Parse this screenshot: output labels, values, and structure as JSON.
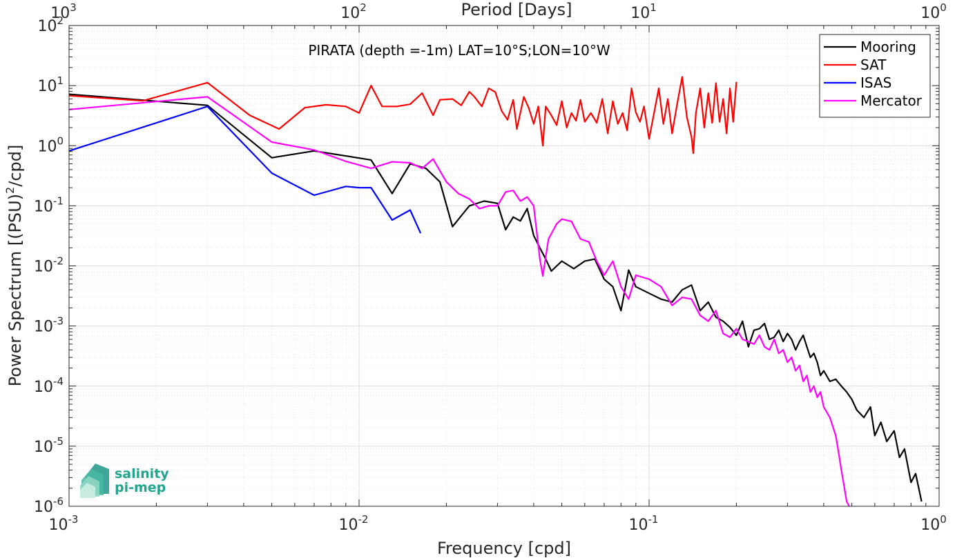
{
  "chart_data": {
    "type": "line",
    "title": "PIRATA (depth =-1m) LAT=10°S;LON=10°W",
    "xlabel": "Frequency [cpd]",
    "ylabel": "Power Spectrum [(PSU)²/cpd]",
    "top_xlabel": "Period [Days]",
    "x_scale": "log",
    "y_scale": "log",
    "xlim": [
      0.001,
      1
    ],
    "ylim": [
      1e-06,
      100
    ],
    "grid": true,
    "legend_position": "top-right",
    "x_ticks": [
      {
        "base": "10",
        "exp": "-3"
      },
      {
        "base": "10",
        "exp": "-2"
      },
      {
        "base": "10",
        "exp": "-1"
      },
      {
        "base": "10",
        "exp": "0"
      }
    ],
    "top_ticks": [
      {
        "base": "10",
        "exp": "3"
      },
      {
        "base": "10",
        "exp": "2"
      },
      {
        "base": "10",
        "exp": "1"
      },
      {
        "base": "10",
        "exp": "0"
      }
    ],
    "y_ticks": [
      {
        "base": "10",
        "exp": "-6"
      },
      {
        "base": "10",
        "exp": "-5"
      },
      {
        "base": "10",
        "exp": "-4"
      },
      {
        "base": "10",
        "exp": "-3"
      },
      {
        "base": "10",
        "exp": "-2"
      },
      {
        "base": "10",
        "exp": "-1"
      },
      {
        "base": "10",
        "exp": "0"
      },
      {
        "base": "10",
        "exp": "1"
      },
      {
        "base": "10",
        "exp": "2"
      }
    ],
    "series": [
      {
        "name": "Mooring",
        "color": "#000000",
        "points": [
          [
            0.001,
            7.2
          ],
          [
            0.003,
            4.7
          ],
          [
            0.005,
            0.63
          ],
          [
            0.007,
            0.82
          ],
          [
            0.011,
            0.58
          ],
          [
            0.013,
            0.16
          ],
          [
            0.015,
            0.5
          ],
          [
            0.017,
            0.42
          ],
          [
            0.019,
            0.25
          ],
          [
            0.021,
            0.045
          ],
          [
            0.024,
            0.1
          ],
          [
            0.027,
            0.12
          ],
          [
            0.03,
            0.11
          ],
          [
            0.032,
            0.04
          ],
          [
            0.034,
            0.065
          ],
          [
            0.036,
            0.056
          ],
          [
            0.038,
            0.09
          ],
          [
            0.04,
            0.032
          ],
          [
            0.042,
            0.02
          ],
          [
            0.044,
            0.013
          ],
          [
            0.046,
            0.0082
          ],
          [
            0.05,
            0.012
          ],
          [
            0.055,
            0.009
          ],
          [
            0.06,
            0.012
          ],
          [
            0.065,
            0.013
          ],
          [
            0.07,
            0.006
          ],
          [
            0.075,
            0.0045
          ],
          [
            0.08,
            0.0018
          ],
          [
            0.085,
            0.0085
          ],
          [
            0.09,
            0.0045
          ],
          [
            0.1,
            0.0035
          ],
          [
            0.11,
            0.0028
          ],
          [
            0.12,
            0.0025
          ],
          [
            0.13,
            0.004
          ],
          [
            0.14,
            0.0048
          ],
          [
            0.15,
            0.0018
          ],
          [
            0.16,
            0.0025
          ],
          [
            0.17,
            0.0014
          ],
          [
            0.18,
            0.0012
          ],
          [
            0.19,
            0.00095
          ],
          [
            0.2,
            0.0007
          ],
          [
            0.21,
            0.0012
          ],
          [
            0.22,
            0.00045
          ],
          [
            0.23,
            0.00085
          ],
          [
            0.24,
            0.0009
          ],
          [
            0.25,
            0.0011
          ],
          [
            0.26,
            0.0006
          ],
          [
            0.27,
            0.00065
          ],
          [
            0.28,
            0.00085
          ],
          [
            0.29,
            0.00055
          ],
          [
            0.3,
            0.00075
          ],
          [
            0.31,
            0.0006
          ],
          [
            0.32,
            0.0004
          ],
          [
            0.33,
            0.00055
          ],
          [
            0.34,
            0.0007
          ],
          [
            0.35,
            0.00045
          ],
          [
            0.36,
            0.0003
          ],
          [
            0.37,
            0.00035
          ],
          [
            0.38,
            0.00025
          ],
          [
            0.39,
            0.00015
          ],
          [
            0.4,
            0.00018
          ],
          [
            0.42,
            0.00012
          ],
          [
            0.44,
            0.00013
          ],
          [
            0.46,
            0.0001
          ],
          [
            0.48,
            8e-05
          ],
          [
            0.5,
            6e-05
          ],
          [
            0.52,
            4e-05
          ],
          [
            0.55,
            3e-05
          ],
          [
            0.58,
            4.5e-05
          ],
          [
            0.6,
            1.5e-05
          ],
          [
            0.63,
            2.5e-05
          ],
          [
            0.66,
            1.2e-05
          ],
          [
            0.7,
            1.8e-05
          ],
          [
            0.73,
            6.5e-06
          ],
          [
            0.76,
            9e-06
          ],
          [
            0.8,
            2.5e-06
          ],
          [
            0.83,
            3.5e-06
          ],
          [
            0.87,
            1.2e-06
          ]
        ]
      },
      {
        "name": "SAT",
        "color": "#ff0000",
        "points": [
          [
            0.001,
            6.8
          ],
          [
            0.0018,
            5.6
          ],
          [
            0.003,
            11.2
          ],
          [
            0.0042,
            3.2
          ],
          [
            0.0053,
            1.9
          ],
          [
            0.0065,
            4.3
          ],
          [
            0.0077,
            4.8
          ],
          [
            0.009,
            4.5
          ],
          [
            0.01,
            3.5
          ],
          [
            0.011,
            10
          ],
          [
            0.012,
            4.5
          ],
          [
            0.0135,
            4.5
          ],
          [
            0.015,
            4.9
          ],
          [
            0.0165,
            7.5
          ],
          [
            0.018,
            3.2
          ],
          [
            0.019,
            5.8
          ],
          [
            0.021,
            6
          ],
          [
            0.0225,
            4.7
          ],
          [
            0.024,
            7.9
          ],
          [
            0.025,
            6.5
          ],
          [
            0.0265,
            4.5
          ],
          [
            0.028,
            9
          ],
          [
            0.0295,
            7.8
          ],
          [
            0.031,
            3.8
          ],
          [
            0.0325,
            2.7
          ],
          [
            0.034,
            5.8
          ],
          [
            0.035,
            1.9
          ],
          [
            0.037,
            6.5
          ],
          [
            0.0385,
            4.2
          ],
          [
            0.04,
            2.3
          ],
          [
            0.0415,
            4.5
          ],
          [
            0.043,
            1.0
          ],
          [
            0.044,
            4.5
          ],
          [
            0.046,
            3.2
          ],
          [
            0.048,
            2.2
          ],
          [
            0.05,
            5.5
          ],
          [
            0.052,
            2.0
          ],
          [
            0.054,
            3.5
          ],
          [
            0.056,
            2.6
          ],
          [
            0.058,
            5.8
          ],
          [
            0.06,
            2.5
          ],
          [
            0.063,
            3.5
          ],
          [
            0.066,
            2.4
          ],
          [
            0.069,
            6.0
          ],
          [
            0.072,
            1.6
          ],
          [
            0.075,
            5.5
          ],
          [
            0.078,
            2.3
          ],
          [
            0.081,
            3.5
          ],
          [
            0.084,
            1.8
          ],
          [
            0.087,
            9.0
          ],
          [
            0.09,
            3.6
          ],
          [
            0.093,
            2.5
          ],
          [
            0.096,
            4.5
          ],
          [
            0.1,
            1.3
          ],
          [
            0.104,
            3.5
          ],
          [
            0.108,
            9.0
          ],
          [
            0.112,
            2.3
          ],
          [
            0.116,
            6.0
          ],
          [
            0.12,
            1.6
          ],
          [
            0.125,
            5.0
          ],
          [
            0.13,
            14.0
          ],
          [
            0.135,
            3.0
          ],
          [
            0.14,
            1.4
          ],
          [
            0.142,
            0.75
          ],
          [
            0.145,
            3.5
          ],
          [
            0.15,
            9.0
          ],
          [
            0.155,
            2.0
          ],
          [
            0.16,
            7.5
          ],
          [
            0.165,
            2.4
          ],
          [
            0.17,
            11.0
          ],
          [
            0.175,
            2.5
          ],
          [
            0.18,
            6.0
          ],
          [
            0.185,
            1.6
          ],
          [
            0.19,
            9.0
          ],
          [
            0.195,
            2.5
          ],
          [
            0.2,
            11.5
          ]
        ]
      },
      {
        "name": "ISAS",
        "color": "#0000ff",
        "points": [
          [
            0.001,
            0.82
          ],
          [
            0.003,
            4.5
          ],
          [
            0.005,
            0.35
          ],
          [
            0.007,
            0.15
          ],
          [
            0.009,
            0.21
          ],
          [
            0.01,
            0.2
          ],
          [
            0.011,
            0.2
          ],
          [
            0.013,
            0.058
          ],
          [
            0.015,
            0.085
          ],
          [
            0.0163,
            0.035
          ]
        ]
      },
      {
        "name": "Mercator",
        "color": "#ff00ff",
        "points": [
          [
            0.001,
            4.0
          ],
          [
            0.003,
            6.5
          ],
          [
            0.005,
            1.15
          ],
          [
            0.007,
            0.85
          ],
          [
            0.009,
            0.55
          ],
          [
            0.011,
            0.42
          ],
          [
            0.013,
            0.54
          ],
          [
            0.015,
            0.52
          ],
          [
            0.0165,
            0.42
          ],
          [
            0.018,
            0.6
          ],
          [
            0.02,
            0.25
          ],
          [
            0.022,
            0.16
          ],
          [
            0.024,
            0.13
          ],
          [
            0.026,
            0.09
          ],
          [
            0.028,
            0.1
          ],
          [
            0.03,
            0.1
          ],
          [
            0.032,
            0.17
          ],
          [
            0.034,
            0.18
          ],
          [
            0.036,
            0.12
          ],
          [
            0.038,
            0.14
          ],
          [
            0.04,
            0.1
          ],
          [
            0.042,
            0.013
          ],
          [
            0.043,
            0.0068
          ],
          [
            0.045,
            0.028
          ],
          [
            0.048,
            0.05
          ],
          [
            0.05,
            0.06
          ],
          [
            0.054,
            0.055
          ],
          [
            0.058,
            0.028
          ],
          [
            0.062,
            0.025
          ],
          [
            0.066,
            0.012
          ],
          [
            0.07,
            0.007
          ],
          [
            0.075,
            0.012
          ],
          [
            0.08,
            0.0045
          ],
          [
            0.085,
            0.0028
          ],
          [
            0.09,
            0.007
          ],
          [
            0.1,
            0.006
          ],
          [
            0.11,
            0.0045
          ],
          [
            0.12,
            0.0022
          ],
          [
            0.13,
            0.003
          ],
          [
            0.14,
            0.0028
          ],
          [
            0.15,
            0.0015
          ],
          [
            0.16,
            0.0012
          ],
          [
            0.17,
            0.0018
          ],
          [
            0.18,
            0.00075
          ],
          [
            0.19,
            0.00065
          ],
          [
            0.2,
            0.0009
          ],
          [
            0.21,
            0.0006
          ],
          [
            0.22,
            0.00055
          ],
          [
            0.23,
            0.0005
          ],
          [
            0.24,
            0.0007
          ],
          [
            0.25,
            0.00045
          ],
          [
            0.26,
            0.0004
          ],
          [
            0.27,
            0.0006
          ],
          [
            0.28,
            0.00035
          ],
          [
            0.29,
            0.0004
          ],
          [
            0.3,
            0.00025
          ],
          [
            0.31,
            0.0003
          ],
          [
            0.32,
            0.00018
          ],
          [
            0.33,
            0.00022
          ],
          [
            0.34,
            0.00012
          ],
          [
            0.35,
            0.00015
          ],
          [
            0.36,
            8e-05
          ],
          [
            0.37,
            0.0001
          ],
          [
            0.38,
            6.5e-05
          ],
          [
            0.39,
            8e-05
          ],
          [
            0.4,
            4.5e-05
          ],
          [
            0.42,
            3e-05
          ],
          [
            0.44,
            1.5e-05
          ],
          [
            0.45,
            8e-06
          ],
          [
            0.46,
            4e-06
          ],
          [
            0.47,
            2.2e-06
          ],
          [
            0.48,
            1.2e-06
          ],
          [
            0.49,
            1e-06
          ]
        ]
      }
    ]
  },
  "logo": {
    "line1": "salinity",
    "line2": "pi-mep"
  }
}
